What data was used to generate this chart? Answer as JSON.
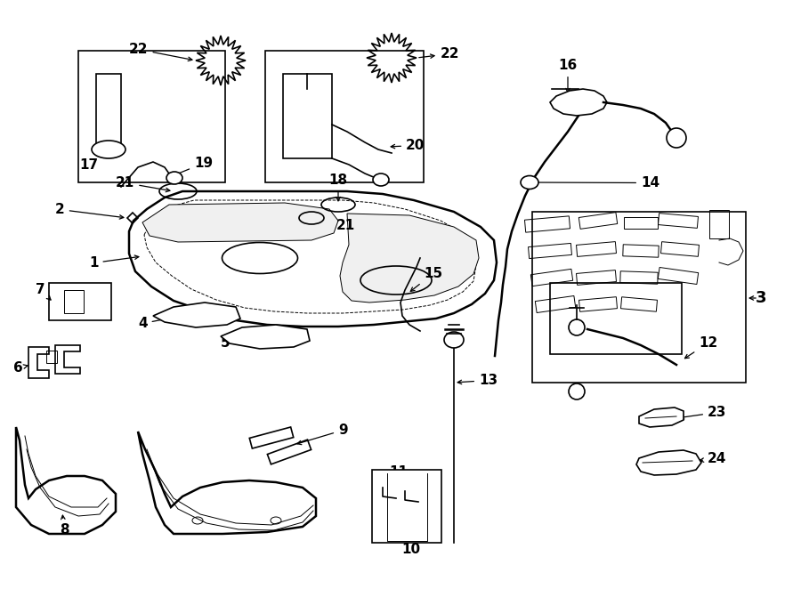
{
  "bg_color": "#ffffff",
  "line_color": "#000000",
  "fig_width": 9.0,
  "fig_height": 6.62,
  "dpi": 100,
  "lw_thick": 1.8,
  "lw_mid": 1.2,
  "lw_thin": 0.7,
  "fs_label": 11,
  "fs_num": 10
}
